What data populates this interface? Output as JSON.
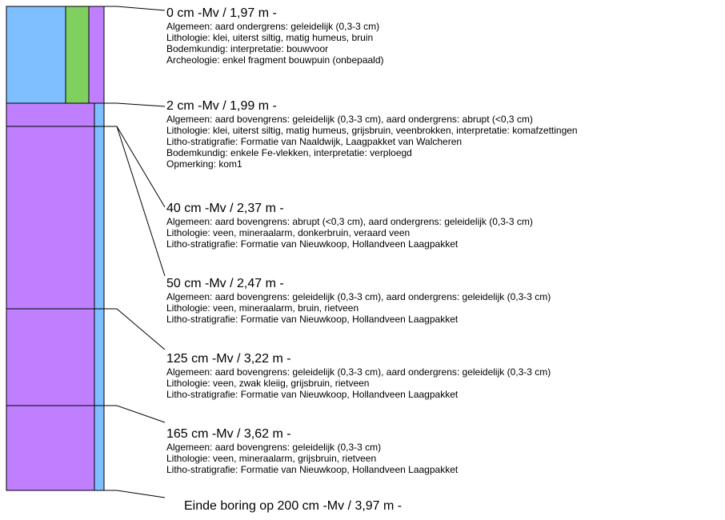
{
  "colors": {
    "klei": "#7fbfff",
    "bouwvoor": "#80d060",
    "veen": "#bf7fff",
    "lijn": "#000000"
  },
  "layers": [
    {
      "heading": "0 cm -Mv / 1,97 m -",
      "lines": [
        "Algemeen: aard ondergrens: geleidelijk (0,3-3 cm)",
        "Lithologie: klei, uiterst siltig, matig humeus, bruin",
        "Bodemkundig: interpretatie: bouwvoor",
        "Archeologie: enkel fragment bouwpuin (onbepaald)"
      ]
    },
    {
      "heading": "2 cm -Mv / 1,99 m -",
      "lines": [
        "Algemeen: aard bovengrens: geleidelijk (0,3-3 cm), aard ondergrens: abrupt (<0,3 cm)",
        "Lithologie: klei, uiterst siltig, matig humeus, grijsbruin, veenbrokken, interpretatie: komafzettingen",
        "Litho-stratigrafie: Formatie van Naaldwijk, Laagpakket van Walcheren",
        "Bodemkundig: enkele Fe-vlekken, interpretatie: verploegd",
        "Opmerking: kom1"
      ]
    },
    {
      "heading": "40 cm -Mv / 2,37 m -",
      "lines": [
        "Algemeen: aard bovengrens: abrupt (<0,3 cm), aard ondergrens: geleidelijk (0,3-3 cm)",
        "Lithologie: veen, mineraalarm, donkerbruin, veraard veen",
        "Litho-stratigrafie: Formatie van Nieuwkoop, Hollandveen Laagpakket"
      ]
    },
    {
      "heading": "50 cm -Mv / 2,47 m -",
      "lines": [
        "Algemeen: aard bovengrens: geleidelijk (0,3-3 cm), aard ondergrens: geleidelijk (0,3-3 cm)",
        "Lithologie: veen, mineraalarm, bruin, rietveen",
        "Litho-stratigrafie: Formatie van Nieuwkoop, Hollandveen Laagpakket"
      ]
    },
    {
      "heading": "125 cm -Mv / 3,22 m -",
      "lines": [
        "Algemeen: aard bovengrens: geleidelijk (0,3-3 cm), aard ondergrens: geleidelijk (0,3-3 cm)",
        "Lithologie: veen, zwak kleiig, grijsbruin, rietveen",
        "Litho-stratigrafie: Formatie van Nieuwkoop, Hollandveen Laagpakket"
      ]
    },
    {
      "heading": "165 cm -Mv / 3,62 m -",
      "lines": [
        "Algemeen: aard bovengrens: geleidelijk (0,3-3 cm)",
        "Lithologie: veen, mineraalarm, grijsbruin, rietveen",
        "Litho-stratigrafie: Formatie van Nieuwkoop, Hollandveen Laagpakket"
      ]
    }
  ],
  "end_label": "Einde boring op 200 cm -Mv / 3,97 m -"
}
